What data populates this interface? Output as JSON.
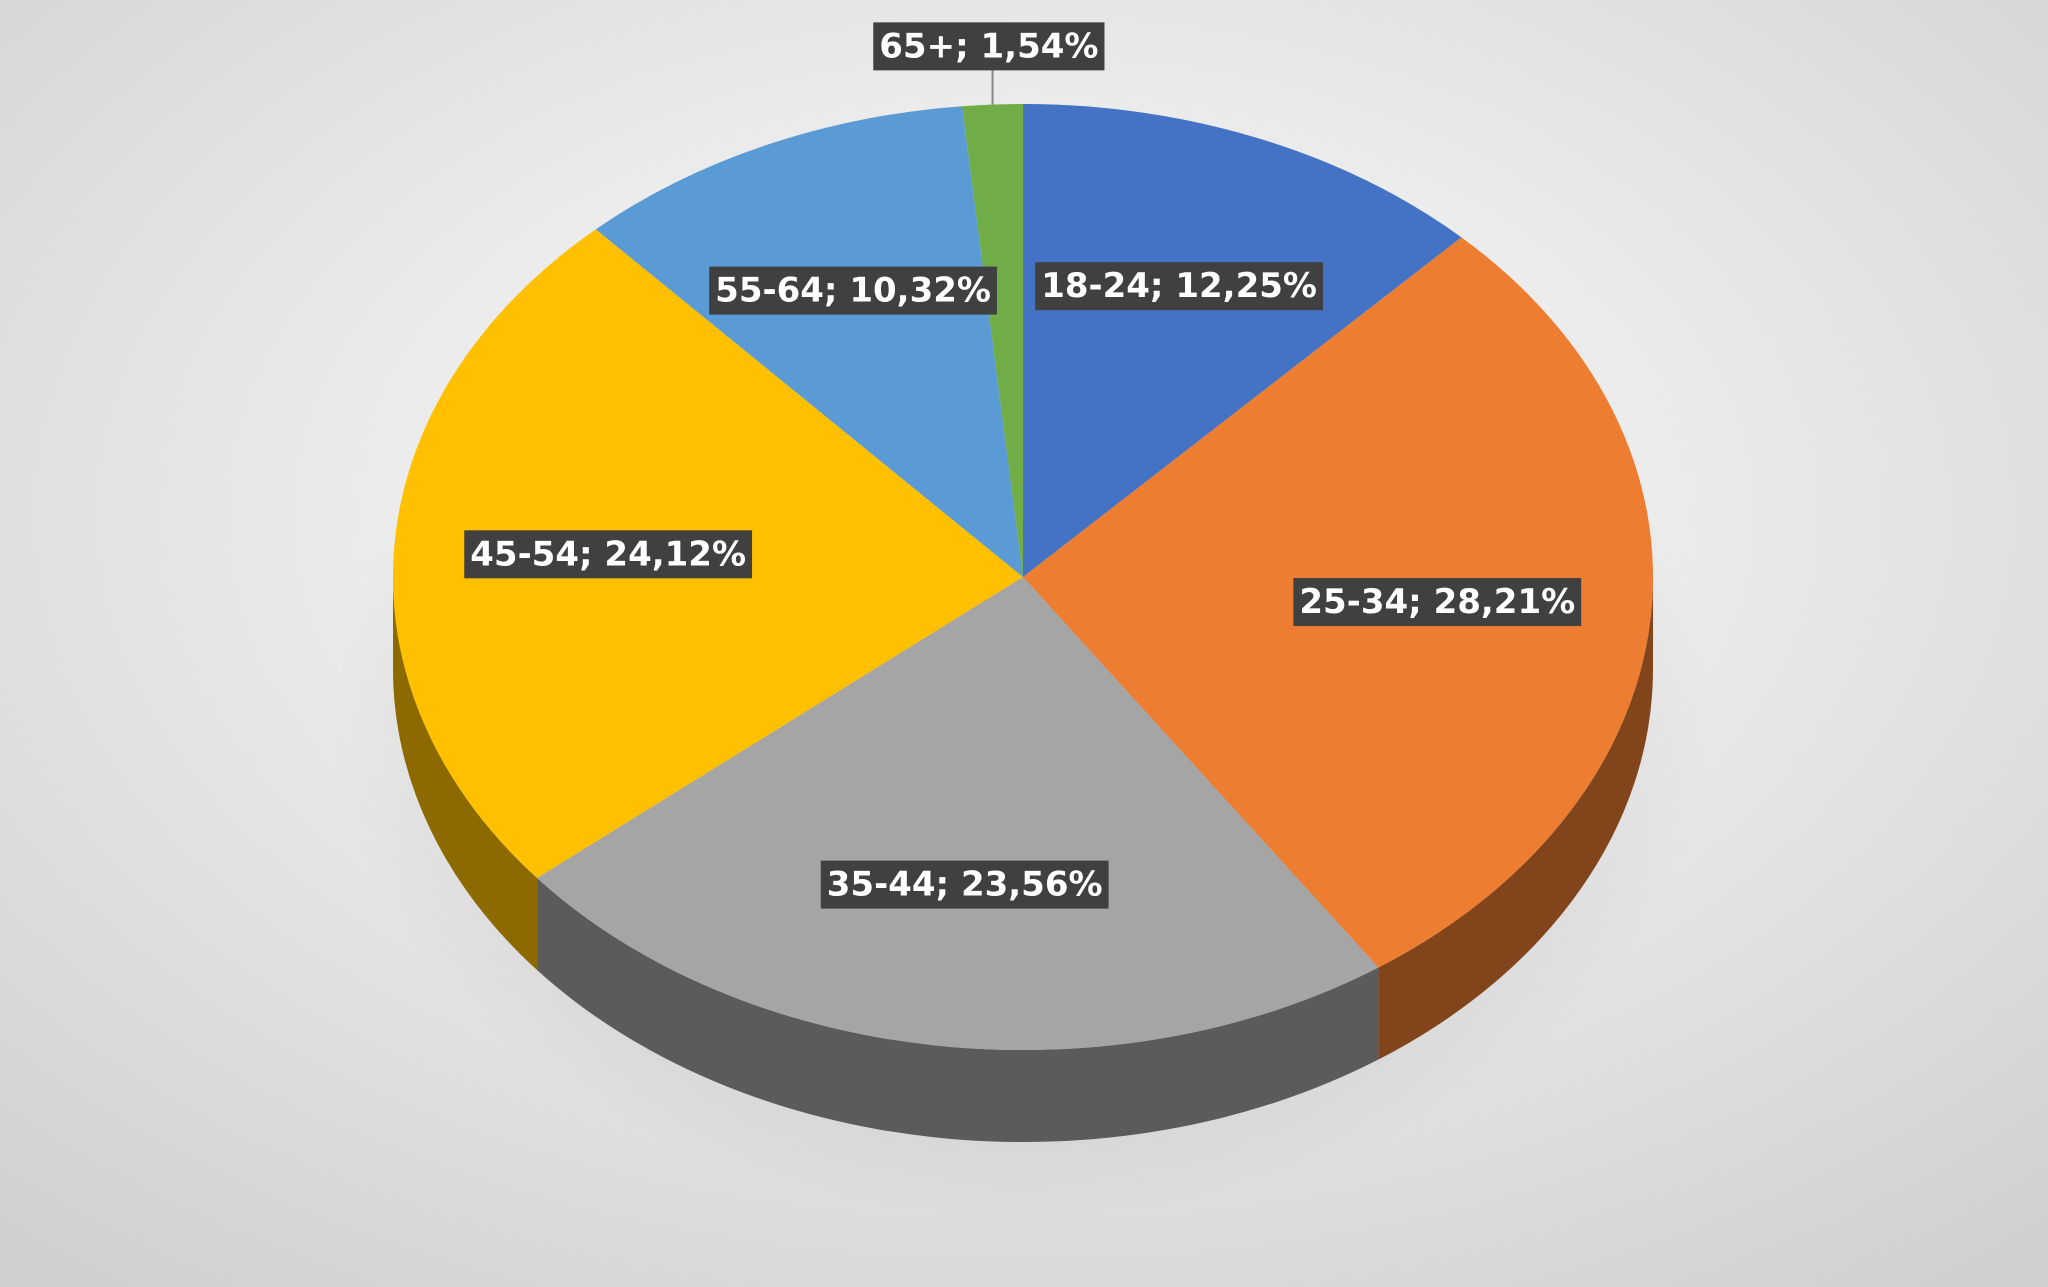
{
  "chart_data": {
    "type": "pie",
    "values": [
      12.25,
      28.21,
      23.56,
      24.12,
      10.32,
      1.54
    ],
    "value_labels": [
      "18-24; 12,25%",
      "25-34; 28,21%",
      "35-44; 23,56%",
      "45-54; 24,12%",
      "55-64; 10,32%",
      "65+; 1,54%"
    ],
    "colors": [
      "#4472c4",
      "#ed7d31",
      "#a5a5a5",
      "#ffc000",
      "#5b9bd5",
      "#70ad47"
    ]
  }
}
